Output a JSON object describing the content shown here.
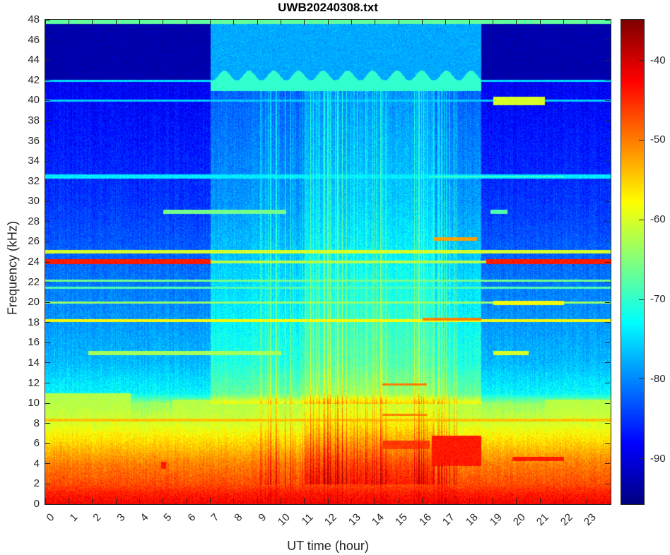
{
  "chart_data": {
    "type": "heatmap",
    "title": "UWB20240308.txt",
    "xlabel": "UT time (hour)",
    "ylabel": "Frequency (kHz)",
    "xlim": [
      0,
      24
    ],
    "ylim": [
      0,
      48
    ],
    "x_ticks": [
      "0",
      "1",
      "2",
      "3",
      "4",
      "5",
      "6",
      "7",
      "8",
      "9",
      "10",
      "11",
      "12",
      "13",
      "14",
      "15",
      "16",
      "17",
      "18",
      "19",
      "20",
      "21",
      "22",
      "23"
    ],
    "y_ticks": [
      "0",
      "2",
      "4",
      "6",
      "8",
      "10",
      "12",
      "14",
      "16",
      "18",
      "20",
      "22",
      "24",
      "26",
      "28",
      "30",
      "32",
      "34",
      "36",
      "38",
      "40",
      "42",
      "44",
      "46",
      "48"
    ],
    "colorbar": {
      "clim": [
        -95.7,
        -34.9
      ],
      "ticks": [
        "-40",
        "-50",
        "-60",
        "-70",
        "-80",
        "-90"
      ],
      "colormap": "jet"
    },
    "background_profile_db": [
      [
        0,
        -42
      ],
      [
        1,
        -44
      ],
      [
        2,
        -47
      ],
      [
        4,
        -50
      ],
      [
        6,
        -55
      ],
      [
        8,
        -60
      ],
      [
        10,
        -64
      ],
      [
        11,
        -73
      ],
      [
        14,
        -77
      ],
      [
        20,
        -80
      ],
      [
        30,
        -85
      ],
      [
        40,
        -88
      ],
      [
        48,
        -91
      ]
    ],
    "active_period_hours": [
      7.0,
      18.5
    ],
    "features": [
      {
        "t": [
          0,
          24
        ],
        "f": [
          47.6,
          48
        ],
        "db": -67
      },
      {
        "t": [
          7,
          18.5
        ],
        "f": [
          42,
          47.6
        ],
        "db": -78
      },
      {
        "t": [
          0,
          7
        ],
        "f": [
          42,
          47.6
        ],
        "db": -93
      },
      {
        "t": [
          18.5,
          24
        ],
        "f": [
          42,
          47.6
        ],
        "db": -93
      },
      {
        "t": [
          0,
          7
        ],
        "f": [
          23.8,
          24.3
        ],
        "db": -44
      },
      {
        "t": [
          18.7,
          24
        ],
        "f": [
          23.8,
          24.3
        ],
        "db": -44
      },
      {
        "t": [
          7,
          18.7
        ],
        "f": [
          23.9,
          24.2
        ],
        "db": -62
      },
      {
        "t": [
          0,
          24
        ],
        "f": [
          24.9,
          25.2
        ],
        "db": -60
      },
      {
        "t": [
          0,
          24
        ],
        "f": [
          18.1,
          18.4
        ],
        "db": -58
      },
      {
        "t": [
          16,
          18.5
        ],
        "f": [
          18.2,
          18.5
        ],
        "db": -50
      },
      {
        "t": [
          0,
          24
        ],
        "f": [
          8.2,
          8.5
        ],
        "db": -54
      },
      {
        "t": [
          0,
          24
        ],
        "f": [
          21.4,
          21.6
        ],
        "db": -68
      },
      {
        "t": [
          0,
          24
        ],
        "f": [
          22.1,
          22.3
        ],
        "db": -66
      },
      {
        "t": [
          0,
          24
        ],
        "f": [
          19.9,
          20.1
        ],
        "db": -64
      },
      {
        "t": [
          19,
          22
        ],
        "f": [
          19.8,
          20.2
        ],
        "db": -58
      },
      {
        "t": [
          0,
          24
        ],
        "f": [
          41.9,
          42.1
        ],
        "db": -75
      },
      {
        "t": [
          0,
          24
        ],
        "f": [
          39.9,
          40.1
        ],
        "db": -76
      },
      {
        "t": [
          19,
          21.2
        ],
        "f": [
          39.6,
          40.4
        ],
        "db": -60
      },
      {
        "t": [
          5,
          10.2
        ],
        "f": [
          28.8,
          29.2
        ],
        "db": -66
      },
      {
        "t": [
          18.9,
          19.6
        ],
        "f": [
          28.8,
          29.2
        ],
        "db": -68
      },
      {
        "t": [
          16.5,
          18.3
        ],
        "f": [
          26.1,
          26.5
        ],
        "db": -52
      },
      {
        "t": [
          16.3,
          22
        ],
        "f": [
          32.4,
          32.6
        ],
        "db": -70
      },
      {
        "t": [
          0,
          24
        ],
        "f": [
          32.3,
          32.7
        ],
        "db": -74
      },
      {
        "t": [
          1.8,
          10
        ],
        "f": [
          14.8,
          15.2
        ],
        "db": -63
      },
      {
        "t": [
          19,
          20.5
        ],
        "f": [
          14.8,
          15.2
        ],
        "db": -60
      },
      {
        "t": [
          16.4,
          18.5
        ],
        "f": [
          3.8,
          6.8
        ],
        "db": -44
      },
      {
        "t": [
          19.8,
          22
        ],
        "f": [
          4.3,
          4.7
        ],
        "db": -44
      },
      {
        "t": [
          14.3,
          16.2
        ],
        "f": [
          11.8,
          12.0
        ],
        "db": -50
      },
      {
        "t": [
          14.3,
          16.2
        ],
        "f": [
          8.8,
          9.0
        ],
        "db": -50
      },
      {
        "t": [
          14.3,
          16.3
        ],
        "f": [
          5.5,
          6.3
        ],
        "db": -46
      },
      {
        "t": [
          4.9,
          5.1
        ],
        "f": [
          3.5,
          4.2
        ],
        "db": -44
      },
      {
        "t": [
          0,
          3.6
        ],
        "f": [
          8,
          11
        ],
        "db": -62
      },
      {
        "t": [
          5.4,
          18.5
        ],
        "f": [
          8,
          10.4
        ],
        "db": -62
      },
      {
        "t": [
          21.2,
          24
        ],
        "f": [
          8,
          10.4
        ],
        "db": -62
      }
    ]
  }
}
